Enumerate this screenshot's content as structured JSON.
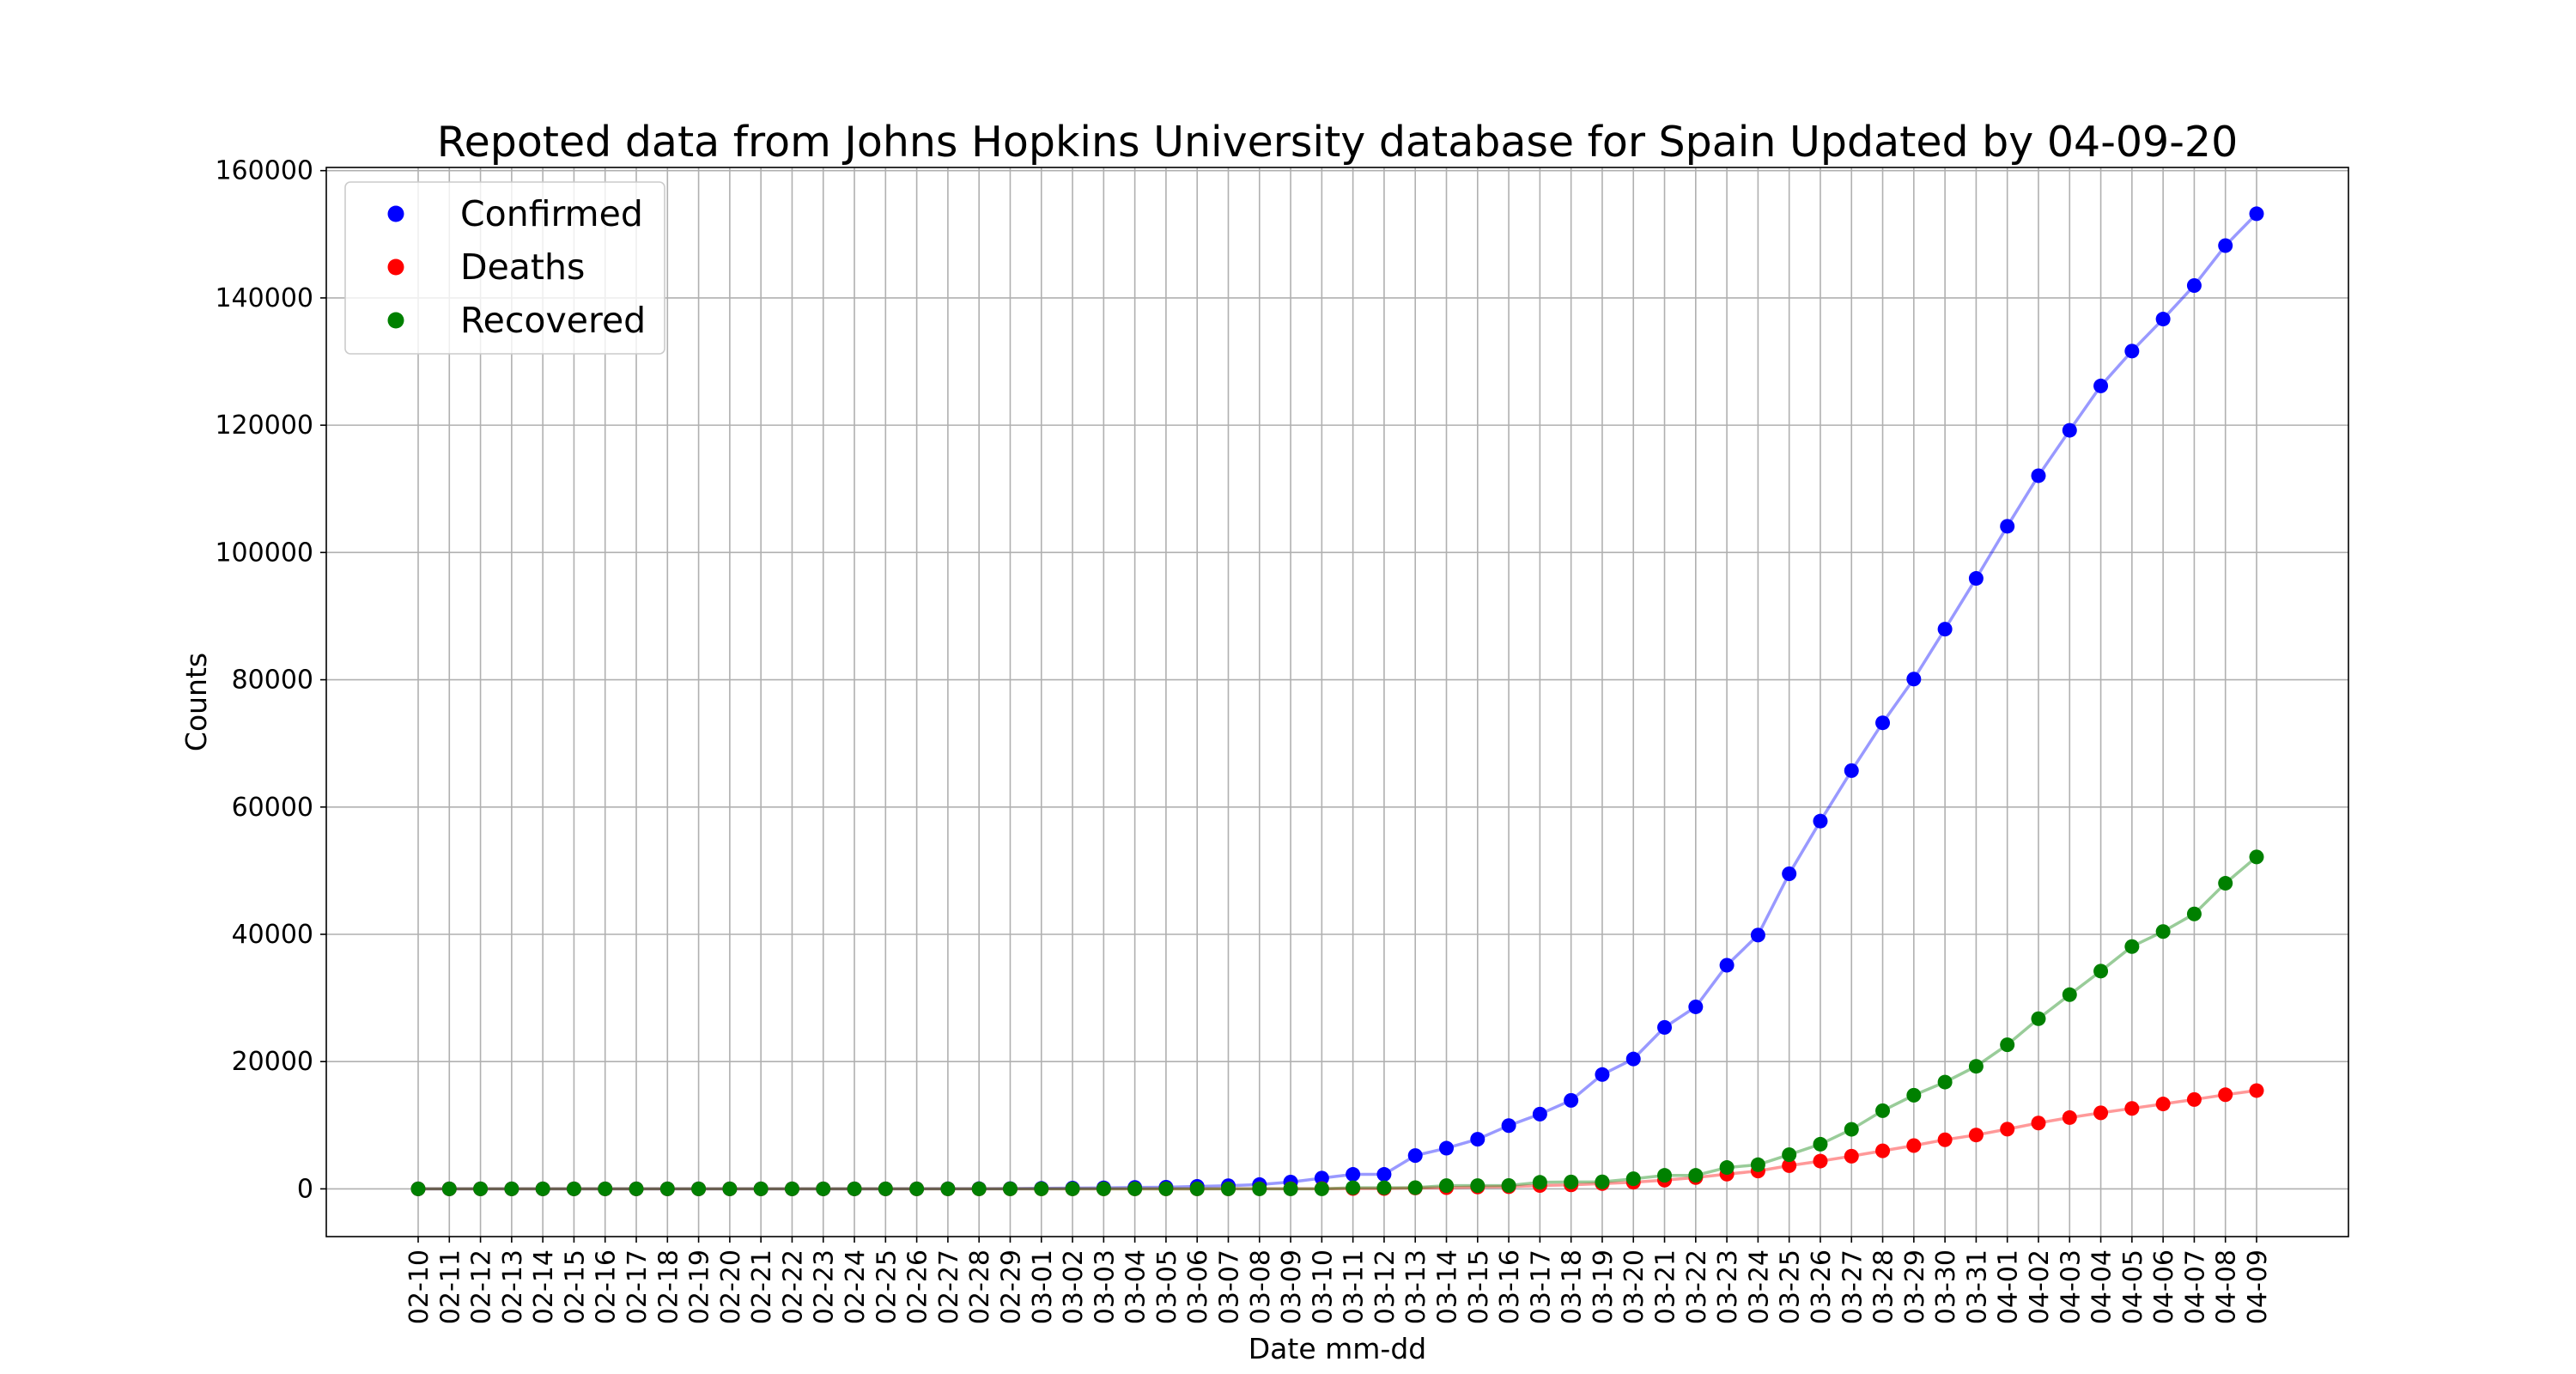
{
  "chart_data": {
    "type": "line",
    "title": "Repoted data from Johns Hopkins University database for Spain Updated by 04-09-20",
    "xlabel": "Date mm-dd",
    "ylabel": "Counts",
    "ylim": [
      -7500,
      160500
    ],
    "yticks": [
      0,
      20000,
      40000,
      60000,
      80000,
      100000,
      120000,
      140000,
      160000
    ],
    "grid": true,
    "legend_position": "top-left",
    "categories": [
      "02-10",
      "02-11",
      "02-12",
      "02-13",
      "02-14",
      "02-15",
      "02-16",
      "02-17",
      "02-18",
      "02-19",
      "02-20",
      "02-21",
      "02-22",
      "02-23",
      "02-24",
      "02-25",
      "02-26",
      "02-27",
      "02-28",
      "02-29",
      "03-01",
      "03-02",
      "03-03",
      "03-04",
      "03-05",
      "03-06",
      "03-07",
      "03-08",
      "03-09",
      "03-10",
      "03-11",
      "03-12",
      "03-13",
      "03-14",
      "03-15",
      "03-16",
      "03-17",
      "03-18",
      "03-19",
      "03-20",
      "03-21",
      "03-22",
      "03-23",
      "03-24",
      "03-25",
      "03-26",
      "03-27",
      "03-28",
      "03-29",
      "03-30",
      "03-31",
      "04-01",
      "04-02",
      "04-03",
      "04-04",
      "04-05",
      "04-06",
      "04-07",
      "04-08",
      "04-09"
    ],
    "series": [
      {
        "name": "Confirmed",
        "color": "#0000ff",
        "values": [
          2,
          2,
          2,
          2,
          2,
          2,
          2,
          2,
          2,
          2,
          2,
          2,
          2,
          2,
          2,
          6,
          13,
          15,
          32,
          45,
          84,
          120,
          165,
          222,
          259,
          400,
          500,
          673,
          1073,
          1695,
          2277,
          2277,
          5232,
          6391,
          7798,
          9942,
          11748,
          13910,
          17963,
          20410,
          25374,
          28603,
          35136,
          39885,
          49515,
          57786,
          65719,
          73235,
          80110,
          87956,
          95923,
          104118,
          112065,
          119199,
          126168,
          131646,
          136675,
          141942,
          148220,
          153222
        ]
      },
      {
        "name": "Deaths",
        "color": "#ff0000",
        "values": [
          0,
          0,
          0,
          0,
          0,
          0,
          0,
          0,
          0,
          0,
          0,
          0,
          0,
          0,
          0,
          0,
          0,
          0,
          0,
          0,
          0,
          0,
          1,
          2,
          3,
          5,
          10,
          17,
          28,
          35,
          54,
          55,
          133,
          195,
          289,
          342,
          533,
          623,
          830,
          1043,
          1375,
          1772,
          2311,
          2808,
          3647,
          4365,
          5138,
          5982,
          6803,
          7716,
          8464,
          9387,
          10348,
          11198,
          11947,
          12641,
          13341,
          14045,
          14792,
          15447
        ]
      },
      {
        "name": "Recovered",
        "color": "#008000",
        "values": [
          0,
          0,
          0,
          0,
          0,
          0,
          0,
          0,
          0,
          0,
          0,
          0,
          0,
          0,
          0,
          0,
          0,
          0,
          0,
          0,
          0,
          0,
          0,
          0,
          0,
          0,
          0,
          0,
          0,
          0,
          183,
          183,
          193,
          517,
          517,
          530,
          1028,
          1081,
          1107,
          1588,
          2125,
          2125,
          3355,
          3794,
          5367,
          7015,
          9357,
          12285,
          14709,
          16780,
          19259,
          22647,
          26743,
          30513,
          34219,
          38080,
          40437,
          43208,
          48021,
          52165
        ]
      }
    ]
  }
}
